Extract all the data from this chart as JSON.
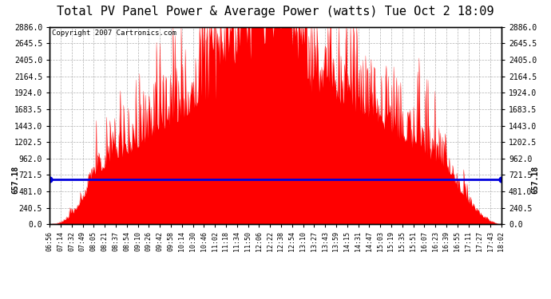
{
  "title": "Total PV Panel Power & Average Power (watts) Tue Oct 2 18:09",
  "copyright": "Copyright 2007 Cartronics.com",
  "average_power": 657.18,
  "y_max": 2886.0,
  "y_ticks": [
    0.0,
    240.5,
    481.0,
    721.5,
    962.0,
    1202.5,
    1443.0,
    1683.5,
    1924.0,
    2164.5,
    2405.0,
    2645.5,
    2886.0
  ],
  "bar_color": "#FF0000",
  "avg_line_color": "#0000DD",
  "background_color": "#FFFFFF",
  "grid_color": "#AAAAAA",
  "title_fontsize": 11,
  "copyright_fontsize": 6.5,
  "x_tick_labels": [
    "06:56",
    "07:14",
    "07:32",
    "07:49",
    "08:05",
    "08:21",
    "08:37",
    "08:54",
    "09:10",
    "09:26",
    "09:42",
    "09:58",
    "10:14",
    "10:30",
    "10:46",
    "11:02",
    "11:18",
    "11:34",
    "11:50",
    "12:06",
    "12:22",
    "12:38",
    "12:54",
    "13:10",
    "13:27",
    "13:43",
    "13:59",
    "14:15",
    "14:31",
    "14:47",
    "15:03",
    "15:19",
    "15:35",
    "15:51",
    "16:07",
    "16:23",
    "16:39",
    "16:55",
    "17:11",
    "17:27",
    "17:43",
    "18:02"
  ],
  "num_points": 660,
  "figwidth": 6.9,
  "figheight": 3.75,
  "dpi": 100
}
